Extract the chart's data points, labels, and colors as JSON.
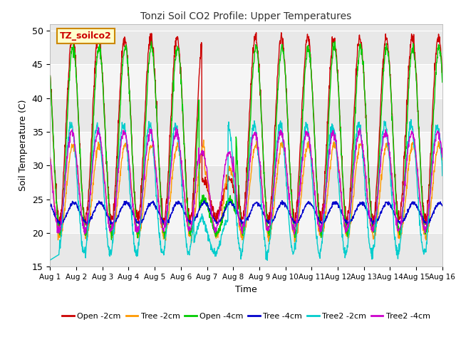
{
  "title": "Tonzi Soil CO2 Profile: Upper Temperatures",
  "xlabel": "Time",
  "ylabel": "Soil Temperature (C)",
  "ylim": [
    15,
    51
  ],
  "yticks": [
    15,
    20,
    25,
    30,
    35,
    40,
    45,
    50
  ],
  "xtick_labels": [
    "Aug 1",
    "Aug 2",
    "Aug 3",
    "Aug 4",
    "Aug 5",
    "Aug 6",
    "Aug 7",
    "Aug 8",
    "Aug 9",
    "Aug 10",
    "Aug 11",
    "Aug 12",
    "Aug 13",
    "Aug 14",
    "Aug 15",
    "Aug 16"
  ],
  "legend_labels": [
    "Open -2cm",
    "Tree -2cm",
    "Open -4cm",
    "Tree -4cm",
    "Tree2 -2cm",
    "Tree2 -4cm"
  ],
  "legend_colors": [
    "#cc0000",
    "#ff9900",
    "#00cc00",
    "#0000cc",
    "#00cccc",
    "#cc00cc"
  ],
  "annotation_text": "TZ_soilco2",
  "annotation_box_facecolor": "#ffffcc",
  "annotation_box_edgecolor": "#cc8800",
  "background_color": "#ffffff",
  "grid_band_colors": [
    "#e8e8e8",
    "#f5f5f5"
  ],
  "n_days": 15,
  "samples_per_day": 96
}
